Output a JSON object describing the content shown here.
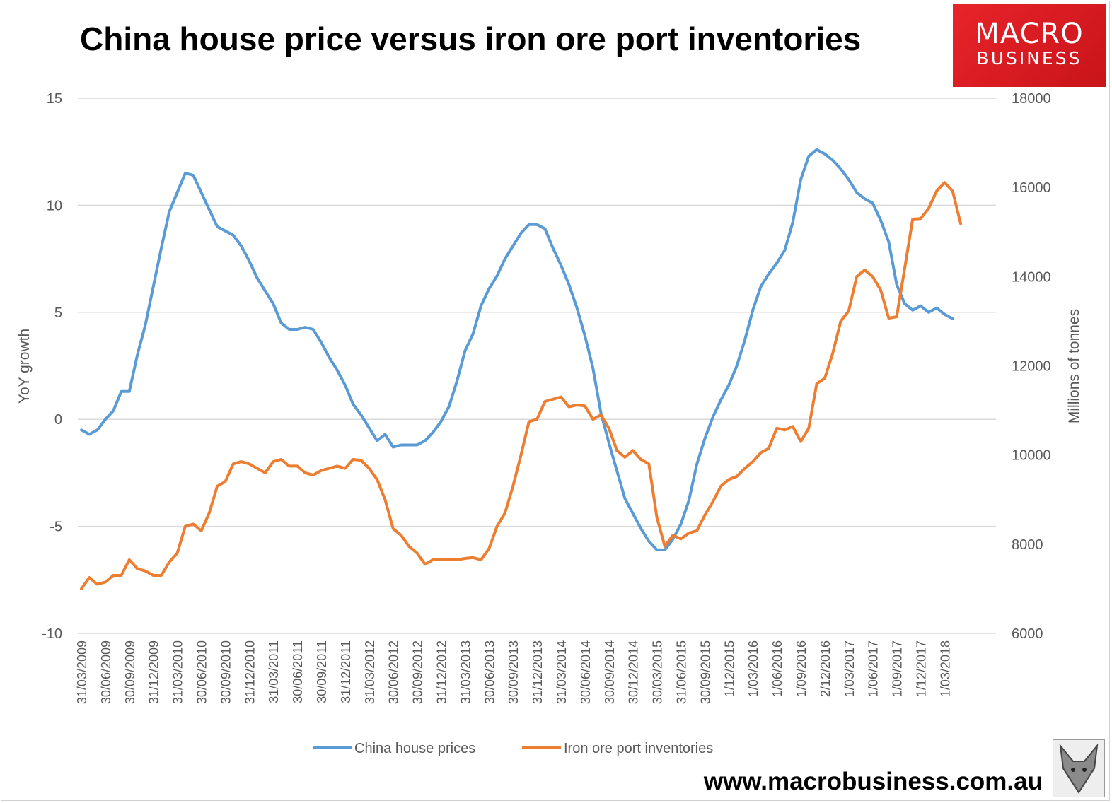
{
  "header": {
    "title": "China house price versus iron ore port inventories"
  },
  "logo": {
    "line1": "MACRO",
    "line2": "BUSINESS"
  },
  "footer": {
    "url": "www.macrobusiness.com.au"
  },
  "chart_data": {
    "type": "line",
    "title": "China house price versus iron ore port inventories",
    "ylabel": "YoY growth",
    "y2label": "Millions of tonnes",
    "ylim": [
      -10,
      15
    ],
    "yticks": [
      -10,
      -5,
      0,
      5,
      10,
      15
    ],
    "y2lim": [
      6000,
      18000
    ],
    "y2ticks": [
      6000,
      8000,
      10000,
      12000,
      14000,
      16000,
      18000
    ],
    "grid": true,
    "legend_position": "bottom",
    "x_start": "2009-03",
    "x_frequency": "monthly",
    "x_tick_labels": [
      "31/03/2009",
      "30/06/2009",
      "30/09/2009",
      "31/12/2009",
      "31/03/2010",
      "30/06/2010",
      "30/09/2010",
      "31/12/2010",
      "31/03/2011",
      "30/06/2011",
      "30/09/2011",
      "31/12/2011",
      "31/03/2012",
      "30/06/2012",
      "30/09/2012",
      "31/12/2012",
      "31/03/2013",
      "30/06/2013",
      "30/09/2013",
      "31/12/2013",
      "31/03/2014",
      "30/06/2014",
      "30/09/2014",
      "30/12/2014",
      "30/03/2015",
      "31/06/2015",
      "30/09/2015",
      "1/12/2015",
      "1/03/2016",
      "1/06/2016",
      "1/09/2016",
      "2/12/2016",
      "1/03/2017",
      "1/06/2017",
      "1/09/2017",
      "1/12/2017",
      "1/03/2018"
    ],
    "series": [
      {
        "name": "China house prices",
        "axis": "left",
        "color": "#5b9bd5",
        "values": [
          -0.5,
          -0.7,
          -0.5,
          0,
          0.4,
          1.3,
          1.3,
          3.0,
          4.4,
          6.2,
          8.0,
          9.7,
          10.6,
          11.5,
          11.4,
          10.6,
          9.8,
          9.0,
          8.8,
          8.6,
          8.1,
          7.4,
          6.6,
          6.0,
          5.4,
          4.5,
          4.2,
          4.2,
          4.3,
          4.2,
          3.6,
          2.9,
          2.3,
          1.6,
          0.7,
          0.2,
          -0.4,
          -1.0,
          -0.7,
          -1.3,
          -1.2,
          -1.2,
          -1.2,
          -1.0,
          -0.6,
          -0.1,
          0.6,
          1.8,
          3.2,
          4.0,
          5.3,
          6.1,
          6.7,
          7.5,
          8.1,
          8.7,
          9.1,
          9.1,
          8.9,
          8.0,
          7.2,
          6.3,
          5.2,
          3.9,
          2.4,
          0.3,
          -1.1,
          -2.4,
          -3.7,
          -4.4,
          -5.1,
          -5.7,
          -6.1,
          -6.1,
          -5.6,
          -4.9,
          -3.8,
          -2.1,
          -0.9,
          0.1,
          0.9,
          1.6,
          2.5,
          3.7,
          5.1,
          6.2,
          6.8,
          7.3,
          7.9,
          9.2,
          11.2,
          12.3,
          12.6,
          12.4,
          12.1,
          11.7,
          11.2,
          10.6,
          10.3,
          10.1,
          9.3,
          8.3,
          6.3,
          5.4,
          5.1,
          5.3,
          5.0,
          5.2,
          4.9,
          4.7
        ]
      },
      {
        "name": "Iron ore port inventories",
        "axis": "right",
        "color": "#ed7d31",
        "values": [
          7000,
          7250,
          7100,
          7150,
          7300,
          7300,
          7650,
          7450,
          7400,
          7300,
          7300,
          7600,
          7800,
          8400,
          8450,
          8300,
          8700,
          9300,
          9400,
          9800,
          9850,
          9800,
          9700,
          9600,
          9850,
          9900,
          9750,
          9750,
          9600,
          9550,
          9650,
          9700,
          9750,
          9700,
          9900,
          9880,
          9700,
          9450,
          9000,
          8350,
          8200,
          7950,
          7800,
          7550,
          7650,
          7650,
          7650,
          7650,
          7680,
          7700,
          7650,
          7900,
          8400,
          8700,
          9300,
          10000,
          10750,
          10800,
          11200,
          11250,
          11300,
          11080,
          11120,
          11100,
          10800,
          10900,
          10600,
          10100,
          9950,
          10100,
          9900,
          9800,
          8600,
          7950,
          8200,
          8120,
          8250,
          8300,
          8650,
          8950,
          9300,
          9450,
          9520,
          9700,
          9850,
          10050,
          10150,
          10600,
          10560,
          10640,
          10300,
          10600,
          11600,
          11720,
          12280,
          13000,
          13230,
          14000,
          14150,
          14000,
          13700,
          13070,
          13100,
          14180,
          15290,
          15300,
          15530,
          15920,
          16110,
          15920,
          15190
        ]
      }
    ]
  }
}
